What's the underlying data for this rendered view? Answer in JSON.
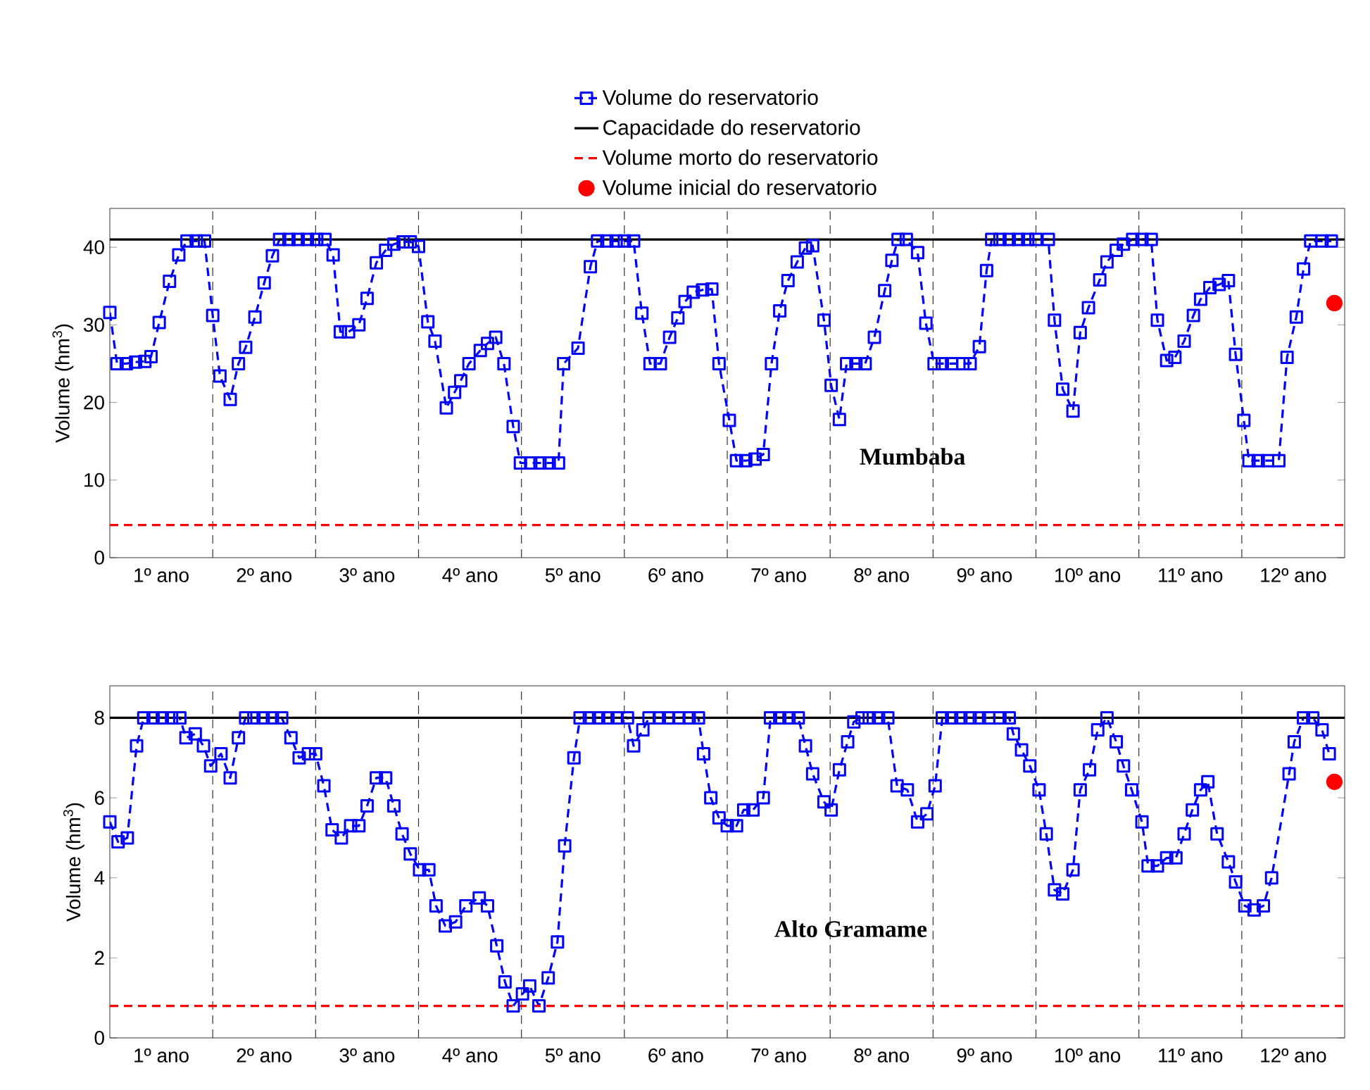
{
  "chart_data": [
    {
      "type": "line",
      "ylabel": "Volume (hm$^{3}$)",
      "legend": "top",
      "xlim": [
        0,
        12
      ],
      "ylim": [
        0,
        45
      ],
      "xticks": [
        {
          "value": 0.5,
          "label": "1º ano"
        },
        {
          "value": 1.5,
          "label": "2º ano"
        },
        {
          "value": 2.5,
          "label": "3º ano"
        },
        {
          "value": 3.5,
          "label": "4º ano"
        },
        {
          "value": 4.5,
          "label": "5º ano"
        },
        {
          "value": 5.5,
          "label": "6º ano"
        },
        {
          "value": 6.5,
          "label": "7º ano"
        },
        {
          "value": 7.5,
          "label": "8º ano"
        },
        {
          "value": 8.5,
          "label": "9º ano"
        },
        {
          "value": 9.5,
          "label": "10º ano"
        },
        {
          "value": 10.5,
          "label": "11º ano"
        },
        {
          "value": 11.5,
          "label": "12º ano"
        }
      ],
      "yticks": [
        0,
        10,
        20,
        30,
        40
      ],
      "annotations": [
        "Mumbaba"
      ],
      "ref_lines": [
        {
          "axis": "x",
          "value": 1,
          "color": "#333333",
          "line_style": "dashed"
        },
        {
          "axis": "x",
          "value": 2,
          "color": "#333333",
          "line_style": "dashed"
        },
        {
          "axis": "x",
          "value": 3,
          "color": "#333333",
          "line_style": "dashed"
        },
        {
          "axis": "x",
          "value": 4,
          "color": "#333333",
          "line_style": "dashed"
        },
        {
          "axis": "x",
          "value": 5,
          "color": "#333333",
          "line_style": "dashed"
        },
        {
          "axis": "x",
          "value": 6,
          "color": "#333333",
          "line_style": "dashed"
        },
        {
          "axis": "x",
          "value": 7,
          "color": "#333333",
          "line_style": "dashed"
        },
        {
          "axis": "x",
          "value": 8,
          "color": "#333333",
          "line_style": "dashed"
        },
        {
          "axis": "x",
          "value": 9,
          "color": "#333333",
          "line_style": "dashed"
        },
        {
          "axis": "x",
          "value": 10,
          "color": "#333333",
          "line_style": "dashed"
        },
        {
          "axis": "x",
          "value": 11,
          "color": "#333333",
          "line_style": "dashed"
        }
      ],
      "series": [
        {
          "name": "Volume do reservatorio",
          "color": "#0000ff",
          "marker": "square",
          "line_style": "dashed",
          "x": [
            0.0,
            0.07,
            0.16,
            0.25,
            0.34,
            0.4,
            0.48,
            0.58,
            0.67,
            0.75,
            0.84,
            0.92,
            1.0,
            1.07,
            1.17,
            1.25,
            1.32,
            1.41,
            1.5,
            1.58,
            1.65,
            1.74,
            1.83,
            1.92,
            2.01,
            2.09,
            2.17,
            2.24,
            2.32,
            2.42,
            2.5,
            2.59,
            2.68,
            2.76,
            2.85,
            2.92,
            3.0,
            3.09,
            3.16,
            3.27,
            3.35,
            3.41,
            3.49,
            3.6,
            3.67,
            3.75,
            3.83,
            3.92,
            3.99,
            4.09,
            4.18,
            4.27,
            4.36,
            4.41,
            4.55,
            4.67,
            4.74,
            4.83,
            4.92,
            5.0,
            5.09,
            5.17,
            5.25,
            5.35,
            5.44,
            5.52,
            5.59,
            5.67,
            5.76,
            5.85,
            5.92,
            6.02,
            6.09,
            6.18,
            6.27,
            6.35,
            6.43,
            6.51,
            6.59,
            6.68,
            6.76,
            6.83,
            6.94,
            7.01,
            7.09,
            7.16,
            7.25,
            7.34,
            7.43,
            7.53,
            7.6,
            7.66,
            7.74,
            7.85,
            7.93,
            8.01,
            8.09,
            8.18,
            8.29,
            8.36,
            8.45,
            8.52,
            8.57,
            8.65,
            8.74,
            8.83,
            8.92,
            9.0,
            9.12,
            9.18,
            9.26,
            9.36,
            9.43,
            9.51,
            9.62,
            9.69,
            9.78,
            9.85,
            9.94,
            10.03,
            10.12,
            10.18,
            10.27,
            10.35,
            10.44,
            10.53,
            10.6,
            10.69,
            10.78,
            10.87,
            10.94,
            11.02,
            11.07,
            11.16,
            11.25,
            11.36,
            11.44,
            11.53,
            11.6,
            11.67,
            11.78,
            11.87
          ],
          "values": [
            31.6,
            25.0,
            25.0,
            25.2,
            25.3,
            25.9,
            30.3,
            35.6,
            39.0,
            40.8,
            40.8,
            40.8,
            31.2,
            23.4,
            20.4,
            25.0,
            27.1,
            31.0,
            35.4,
            38.9,
            41.0,
            41.0,
            41.0,
            41.0,
            41.0,
            41.0,
            39.0,
            29.1,
            29.1,
            30.0,
            33.4,
            38.0,
            39.6,
            40.4,
            40.7,
            40.7,
            40.1,
            30.4,
            27.9,
            19.3,
            21.3,
            22.8,
            25.0,
            26.7,
            27.6,
            28.4,
            25.0,
            16.9,
            12.2,
            12.2,
            12.2,
            12.2,
            12.2,
            25.0,
            27.0,
            37.5,
            40.8,
            40.8,
            40.8,
            40.8,
            40.8,
            31.5,
            25.0,
            25.0,
            28.4,
            30.9,
            33.0,
            34.2,
            34.5,
            34.6,
            25.0,
            17.7,
            12.5,
            12.5,
            12.7,
            13.3,
            25.0,
            31.8,
            35.7,
            38.1,
            39.9,
            40.2,
            30.6,
            22.2,
            17.8,
            25.0,
            25.0,
            25.0,
            28.4,
            34.4,
            38.3,
            41.0,
            41.0,
            39.3,
            30.2,
            25.0,
            25.0,
            25.0,
            25.0,
            25.0,
            27.2,
            37.0,
            41.0,
            41.0,
            41.0,
            41.0,
            41.0,
            41.0,
            41.0,
            30.6,
            21.7,
            18.9,
            29.0,
            32.2,
            35.8,
            38.1,
            39.6,
            40.4,
            41.0,
            41.0,
            41.0,
            30.6,
            25.4,
            25.8,
            27.9,
            31.2,
            33.3,
            34.8,
            35.2,
            35.7,
            26.2,
            17.7,
            12.5,
            12.5,
            12.5,
            12.5,
            25.8,
            31.0,
            37.2,
            40.8,
            40.8,
            40.8
          ]
        },
        {
          "name": "Capacidade do reservatorio",
          "color": "#000000",
          "marker": "none",
          "line_style": "solid",
          "x": [
            0,
            12
          ],
          "values": [
            41,
            41
          ]
        },
        {
          "name": "Volume morto do reservatorio",
          "color": "#ff0000",
          "marker": "none",
          "line_style": "dashed",
          "x": [
            0,
            12
          ],
          "values": [
            4.2,
            4.2
          ]
        },
        {
          "name": "Volume inicial do reservatorio",
          "type": "scatter",
          "color": "#ff0000",
          "marker": "circle",
          "x": [
            11.9
          ],
          "values": [
            32.8
          ]
        }
      ]
    },
    {
      "type": "line",
      "ylabel": "Volume (hm$^{3}$)",
      "xlim": [
        0,
        12
      ],
      "ylim": [
        0,
        8.8
      ],
      "xticks": [
        {
          "value": 0.5,
          "label": "1º ano"
        },
        {
          "value": 1.5,
          "label": "2º ano"
        },
        {
          "value": 2.5,
          "label": "3º ano"
        },
        {
          "value": 3.5,
          "label": "4º ano"
        },
        {
          "value": 4.5,
          "label": "5º ano"
        },
        {
          "value": 5.5,
          "label": "6º ano"
        },
        {
          "value": 6.5,
          "label": "7º ano"
        },
        {
          "value": 7.5,
          "label": "8º ano"
        },
        {
          "value": 8.5,
          "label": "9º ano"
        },
        {
          "value": 9.5,
          "label": "10º ano"
        },
        {
          "value": 10.5,
          "label": "11º ano"
        },
        {
          "value": 11.5,
          "label": "12º ano"
        }
      ],
      "yticks": [
        0,
        2,
        4,
        6,
        8
      ],
      "annotations": [
        "Alto Gramame"
      ],
      "ref_lines": [
        {
          "axis": "x",
          "value": 1,
          "color": "#333333",
          "line_style": "dashed"
        },
        {
          "axis": "x",
          "value": 2,
          "color": "#333333",
          "line_style": "dashed"
        },
        {
          "axis": "x",
          "value": 3,
          "color": "#333333",
          "line_style": "dashed"
        },
        {
          "axis": "x",
          "value": 4,
          "color": "#333333",
          "line_style": "dashed"
        },
        {
          "axis": "x",
          "value": 5,
          "color": "#333333",
          "line_style": "dashed"
        },
        {
          "axis": "x",
          "value": 6,
          "color": "#333333",
          "line_style": "dashed"
        },
        {
          "axis": "x",
          "value": 7,
          "color": "#333333",
          "line_style": "dashed"
        },
        {
          "axis": "x",
          "value": 8,
          "color": "#333333",
          "line_style": "dashed"
        },
        {
          "axis": "x",
          "value": 9,
          "color": "#333333",
          "line_style": "dashed"
        },
        {
          "axis": "x",
          "value": 10,
          "color": "#333333",
          "line_style": "dashed"
        },
        {
          "axis": "x",
          "value": 11,
          "color": "#333333",
          "line_style": "dashed"
        }
      ],
      "series": [
        {
          "color": "#0000ff",
          "marker": "square",
          "line_style": "dashed",
          "x": [
            0.0,
            0.08,
            0.17,
            0.26,
            0.33,
            0.42,
            0.51,
            0.6,
            0.68,
            0.74,
            0.83,
            0.91,
            0.98,
            1.08,
            1.17,
            1.25,
            1.32,
            1.4,
            1.49,
            1.58,
            1.67,
            1.76,
            1.84,
            1.93,
            2.0,
            2.08,
            2.16,
            2.25,
            2.34,
            2.42,
            2.5,
            2.59,
            2.68,
            2.76,
            2.84,
            2.92,
            3.01,
            3.1,
            3.17,
            3.26,
            3.36,
            3.46,
            3.59,
            3.67,
            3.76,
            3.84,
            3.92,
            4.01,
            4.08,
            4.17,
            4.26,
            4.35,
            4.42,
            4.51,
            4.57,
            4.66,
            4.75,
            4.84,
            4.93,
            5.03,
            5.09,
            5.18,
            5.24,
            5.34,
            5.43,
            5.53,
            5.63,
            5.72,
            5.77,
            5.84,
            5.92,
            6.0,
            6.09,
            6.16,
            6.25,
            6.35,
            6.42,
            6.51,
            6.6,
            6.69,
            6.76,
            6.83,
            6.94,
            7.01,
            7.09,
            7.17,
            7.23,
            7.31,
            7.38,
            7.47,
            7.56,
            7.65,
            7.75,
            7.85,
            7.94,
            8.02,
            8.09,
            8.18,
            8.27,
            8.36,
            8.45,
            8.54,
            8.65,
            8.74,
            8.78,
            8.86,
            8.94,
            9.03,
            9.1,
            9.18,
            9.26,
            9.36,
            9.43,
            9.52,
            9.6,
            9.69,
            9.78,
            9.85,
            9.93,
            10.03,
            10.09,
            10.18,
            10.27,
            10.36,
            10.44,
            10.52,
            10.6,
            10.67,
            10.76,
            10.87,
            10.94,
            11.03,
            11.12,
            11.21,
            11.29,
            11.46,
            11.51,
            11.6,
            11.69,
            11.78,
            11.85
          ],
          "values": [
            5.4,
            4.9,
            5.0,
            7.3,
            8.0,
            8.0,
            8.0,
            8.0,
            8.0,
            7.5,
            7.6,
            7.3,
            6.8,
            7.1,
            6.5,
            7.5,
            8.0,
            8.0,
            8.0,
            8.0,
            8.0,
            7.5,
            7.0,
            7.1,
            7.1,
            6.3,
            5.2,
            5.0,
            5.3,
            5.3,
            5.8,
            6.5,
            6.5,
            5.8,
            5.1,
            4.6,
            4.2,
            4.2,
            3.3,
            2.8,
            2.9,
            3.3,
            3.5,
            3.3,
            2.3,
            1.4,
            0.8,
            1.1,
            1.3,
            0.8,
            1.5,
            2.4,
            4.8,
            7.0,
            8.0,
            8.0,
            8.0,
            8.0,
            8.0,
            8.0,
            7.3,
            7.7,
            8.0,
            8.0,
            8.0,
            8.0,
            8.0,
            8.0,
            7.1,
            6.0,
            5.5,
            5.3,
            5.3,
            5.7,
            5.7,
            6.0,
            8.0,
            8.0,
            8.0,
            8.0,
            7.3,
            6.6,
            5.9,
            5.7,
            6.7,
            7.4,
            7.9,
            8.0,
            8.0,
            8.0,
            8.0,
            6.3,
            6.2,
            5.4,
            5.6,
            6.3,
            8.0,
            8.0,
            8.0,
            8.0,
            8.0,
            8.0,
            8.0,
            8.0,
            7.6,
            7.2,
            6.8,
            6.2,
            5.1,
            3.7,
            3.6,
            4.2,
            6.2,
            6.7,
            7.7,
            8.0,
            7.4,
            6.8,
            6.2,
            5.4,
            4.3,
            4.3,
            4.5,
            4.5,
            5.1,
            5.7,
            6.2,
            6.4,
            5.1,
            4.4,
            3.9,
            3.3,
            3.2,
            3.3,
            4.0,
            6.6,
            7.4,
            8.0,
            8.0,
            7.7,
            7.1
          ]
        },
        {
          "color": "#000000",
          "marker": "none",
          "line_style": "solid",
          "x": [
            0,
            12
          ],
          "values": [
            8,
            8
          ]
        },
        {
          "color": "#ff0000",
          "marker": "none",
          "line_style": "dashed",
          "x": [
            0,
            12
          ],
          "values": [
            0.8,
            0.8
          ]
        },
        {
          "type": "scatter",
          "color": "#ff0000",
          "marker": "circle",
          "x": [
            11.9
          ],
          "values": [
            6.4
          ]
        }
      ]
    }
  ]
}
